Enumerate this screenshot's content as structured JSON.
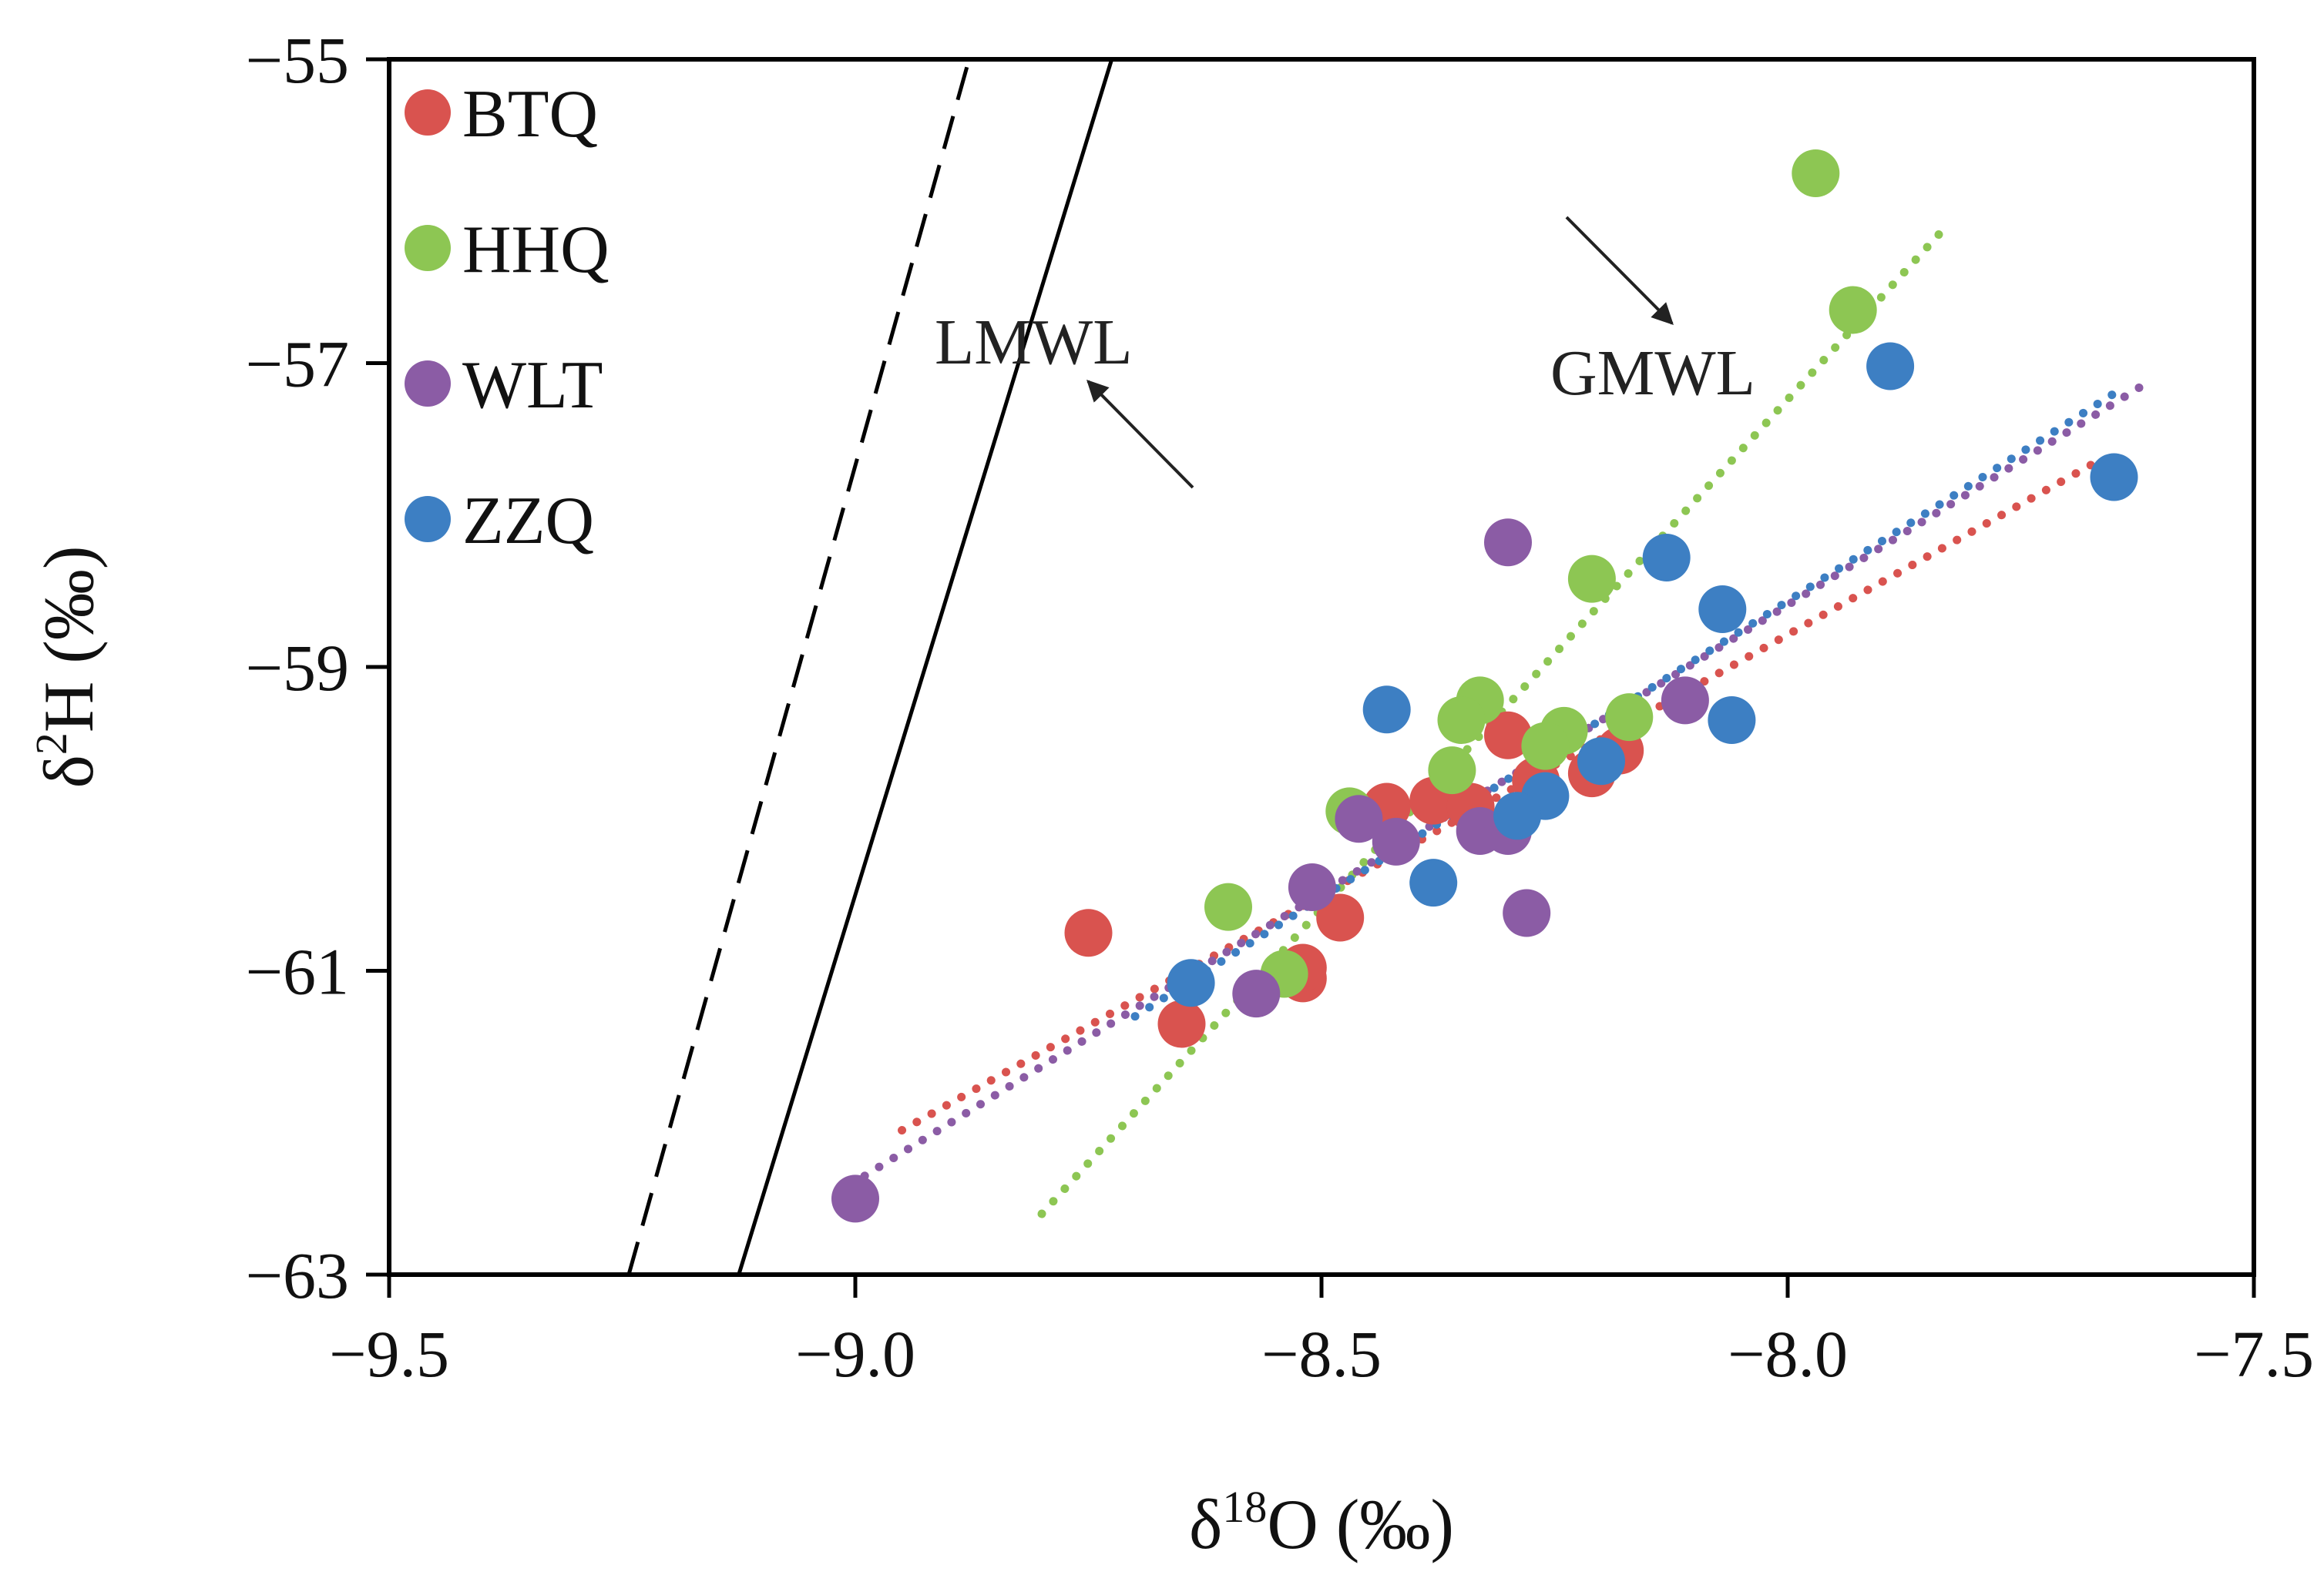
{
  "chart_data": {
    "type": "scatter",
    "title": "",
    "xlabel": {
      "base": "δ",
      "sup": "18",
      "rest": "O (‰)"
    },
    "ylabel": {
      "base": "δ",
      "sup": "2",
      "rest": "H (‰)"
    },
    "xlim": [
      -9.5,
      -7.5
    ],
    "ylim": [
      -63,
      -55
    ],
    "x_ticks": [
      -9.5,
      -9.0,
      -8.5,
      -8.0,
      -7.5
    ],
    "x_tick_labels": [
      "−9.5",
      "−9.0",
      "−8.5",
      "−8.0",
      "−7.5"
    ],
    "y_ticks": [
      -55,
      -57,
      -59,
      -61,
      -63
    ],
    "y_tick_labels": [
      "−55",
      "−57",
      "−59",
      "−61",
      "−63"
    ],
    "grid": false,
    "legend": "top-left",
    "series": [
      {
        "name": "BTQ",
        "color": "#d9534f",
        "points": [
          [
            -8.75,
            -60.75
          ],
          [
            -8.65,
            -61.35
          ],
          [
            -8.52,
            -61.05
          ],
          [
            -8.52,
            -60.98
          ],
          [
            -8.48,
            -60.65
          ],
          [
            -8.43,
            -59.92
          ],
          [
            -8.38,
            -59.88
          ],
          [
            -8.34,
            -59.92
          ],
          [
            -8.3,
            -59.45
          ],
          [
            -8.27,
            -59.75
          ],
          [
            -8.21,
            -59.7
          ],
          [
            -8.18,
            -59.55
          ]
        ],
        "trend": {
          "x": [
            -8.95,
            -7.66
          ],
          "y": [
            -62.05,
            -57.62
          ]
        }
      },
      {
        "name": "HHQ",
        "color": "#8dc653",
        "points": [
          [
            -7.97,
            -55.75
          ],
          [
            -7.93,
            -56.65
          ],
          [
            -8.21,
            -58.42
          ],
          [
            -8.33,
            -59.22
          ],
          [
            -8.35,
            -59.35
          ],
          [
            -8.36,
            -59.68
          ],
          [
            -8.24,
            -59.42
          ],
          [
            -8.26,
            -59.52
          ],
          [
            -8.17,
            -59.33
          ],
          [
            -8.47,
            -59.95
          ],
          [
            -8.6,
            -60.58
          ],
          [
            -8.54,
            -61.02
          ]
        ],
        "trend": {
          "x": [
            -8.8,
            -7.83
          ],
          "y": [
            -62.6,
            -56.1
          ]
        }
      },
      {
        "name": "WLT",
        "color": "#8b5ca5",
        "points": [
          [
            -9.0,
            -62.5
          ],
          [
            -8.57,
            -61.15
          ],
          [
            -8.51,
            -60.45
          ],
          [
            -8.46,
            -60.0
          ],
          [
            -8.42,
            -60.15
          ],
          [
            -8.33,
            -60.08
          ],
          [
            -8.3,
            -60.08
          ],
          [
            -8.28,
            -60.62
          ],
          [
            -8.3,
            -58.18
          ],
          [
            -8.11,
            -59.22
          ]
        ],
        "trend": {
          "x": [
            -8.99,
            -7.62
          ],
          "y": [
            -62.35,
            -57.15
          ]
        }
      },
      {
        "name": "ZZQ",
        "color": "#3d7fc3",
        "points": [
          [
            -7.89,
            -57.02
          ],
          [
            -7.65,
            -57.75
          ],
          [
            -8.13,
            -58.28
          ],
          [
            -8.07,
            -58.62
          ],
          [
            -8.06,
            -59.35
          ],
          [
            -8.43,
            -59.28
          ],
          [
            -8.2,
            -59.62
          ],
          [
            -8.26,
            -59.85
          ],
          [
            -8.29,
            -59.98
          ],
          [
            -8.38,
            -60.42
          ],
          [
            -8.64,
            -61.08
          ]
        ],
        "trend": {
          "x": [
            -8.7,
            -7.65
          ],
          "y": [
            -61.3,
            -57.2
          ]
        }
      }
    ],
    "reference_lines": [
      {
        "name": "LMWL",
        "style": "dashed",
        "x": [
          -9.243,
          -8.878
        ],
        "y": [
          -63,
          -55
        ]
      },
      {
        "name": "GMWL",
        "style": "solid",
        "x": [
          -9.125,
          -8.725
        ],
        "y": [
          -63,
          -55
        ]
      }
    ],
    "annotations": [
      {
        "text": "LMWL",
        "arrow_to": "LMWL"
      },
      {
        "text": "GMWL",
        "arrow_to": "GMWL"
      }
    ]
  }
}
